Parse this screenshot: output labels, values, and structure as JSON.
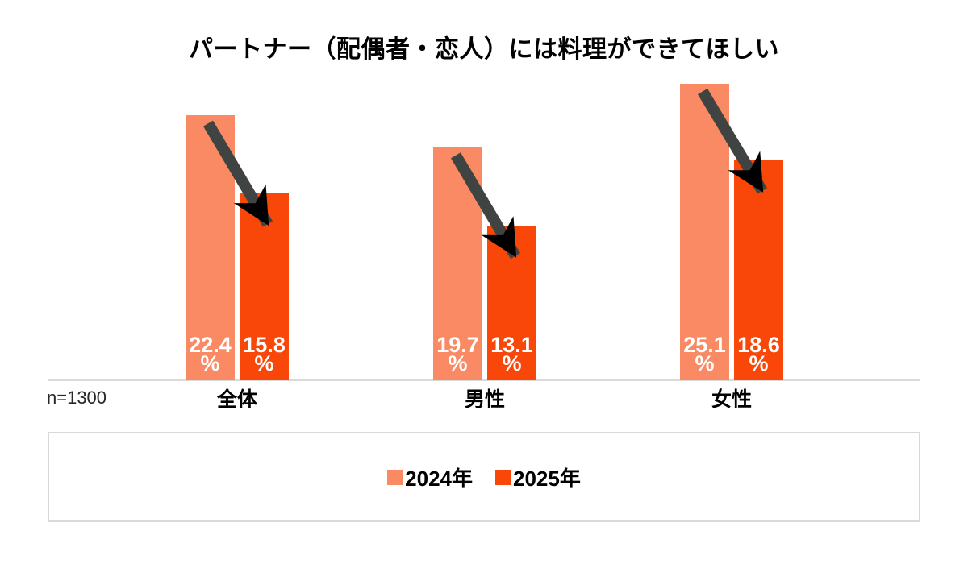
{
  "sample_note": "n=1300",
  "chart_data": {
    "type": "bar",
    "title": "パートナー（配偶者・恋人）には料理ができてほしい",
    "categories": [
      "全体",
      "男性",
      "女性"
    ],
    "series": [
      {
        "name": "2024年",
        "color": "#FA8A63",
        "values": [
          22.4,
          19.7,
          25.1
        ]
      },
      {
        "name": "2025年",
        "color": "#F84708",
        "values": [
          15.8,
          13.1,
          18.6
        ]
      }
    ],
    "value_suffix": "%",
    "value_label_color": "#FFFFFF",
    "ylim": [
      0,
      32
    ],
    "grid": false,
    "legend_position": "bottom",
    "axis_line_color": "#D9D9D9",
    "arrow_color": "#3F4443",
    "annotations": [
      {
        "type": "decline-arrow",
        "group": "全体",
        "from": 22.4,
        "to": 15.8
      },
      {
        "type": "decline-arrow",
        "group": "男性",
        "from": 19.7,
        "to": 13.1
      },
      {
        "type": "decline-arrow",
        "group": "女性",
        "from": 25.1,
        "to": 18.6
      }
    ]
  }
}
